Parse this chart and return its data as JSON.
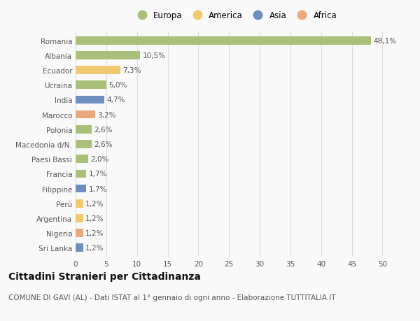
{
  "countries": [
    "Romania",
    "Albania",
    "Ecuador",
    "Ucraina",
    "India",
    "Marocco",
    "Polonia",
    "Macedonia d/N.",
    "Paesi Bassi",
    "Francia",
    "Filippine",
    "Perù",
    "Argentina",
    "Nigeria",
    "Sri Lanka"
  ],
  "values": [
    48.1,
    10.5,
    7.3,
    5.0,
    4.7,
    3.2,
    2.6,
    2.6,
    2.0,
    1.7,
    1.7,
    1.2,
    1.2,
    1.2,
    1.2
  ],
  "labels": [
    "48,1%",
    "10,5%",
    "7,3%",
    "5,0%",
    "4,7%",
    "3,2%",
    "2,6%",
    "2,6%",
    "2,0%",
    "1,7%",
    "1,7%",
    "1,2%",
    "1,2%",
    "1,2%",
    "1,2%"
  ],
  "continents": [
    "Europa",
    "Europa",
    "America",
    "Europa",
    "Asia",
    "Africa",
    "Europa",
    "Europa",
    "Europa",
    "Europa",
    "Asia",
    "America",
    "America",
    "Africa",
    "Asia"
  ],
  "continent_colors": {
    "Europa": "#a8c07a",
    "America": "#f0c96e",
    "Asia": "#6e8ebf",
    "Africa": "#e8a87c"
  },
  "legend_order": [
    "Europa",
    "America",
    "Asia",
    "Africa"
  ],
  "xlim": [
    0,
    52
  ],
  "xticks": [
    0,
    5,
    10,
    15,
    20,
    25,
    30,
    35,
    40,
    45,
    50
  ],
  "title": "Cittadini Stranieri per Cittadinanza",
  "subtitle": "COMUNE DI GAVI (AL) - Dati ISTAT al 1° gennaio di ogni anno - Elaborazione TUTTITALIA.IT",
  "background_color": "#f9f9f9",
  "bar_height": 0.55,
  "grid_color": "#dddddd",
  "label_fontsize": 7.5,
  "tick_fontsize": 7.5,
  "title_fontsize": 10,
  "subtitle_fontsize": 7.5
}
